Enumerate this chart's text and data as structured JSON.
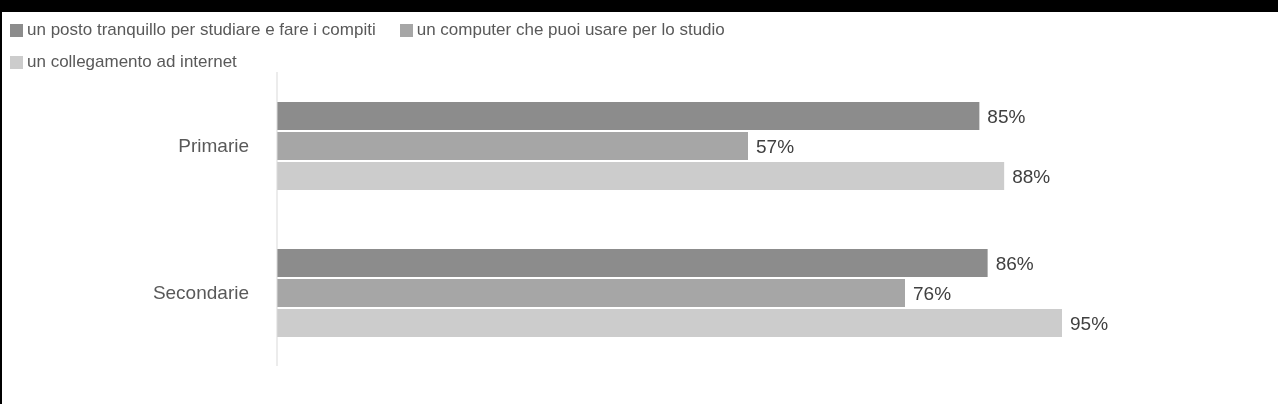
{
  "chart_data": {
    "type": "bar",
    "orientation": "horizontal",
    "categories": [
      "Primarie",
      "Secondarie"
    ],
    "series": [
      {
        "name": "un posto tranquillo per studiare e fare i compiti",
        "color": "#8c8c8c",
        "values": [
          85,
          86
        ],
        "value_labels": [
          "85%",
          "86%"
        ]
      },
      {
        "name": "un computer che puoi usare per lo studio",
        "color": "#a6a6a6",
        "values": [
          57,
          76
        ],
        "value_labels": [
          "57%",
          "76%"
        ]
      },
      {
        "name": "un collegamento ad internet",
        "color": "#cccccc",
        "values": [
          88,
          95
        ],
        "value_labels": [
          "88%",
          "95%"
        ]
      }
    ],
    "legend": "top left"
  }
}
